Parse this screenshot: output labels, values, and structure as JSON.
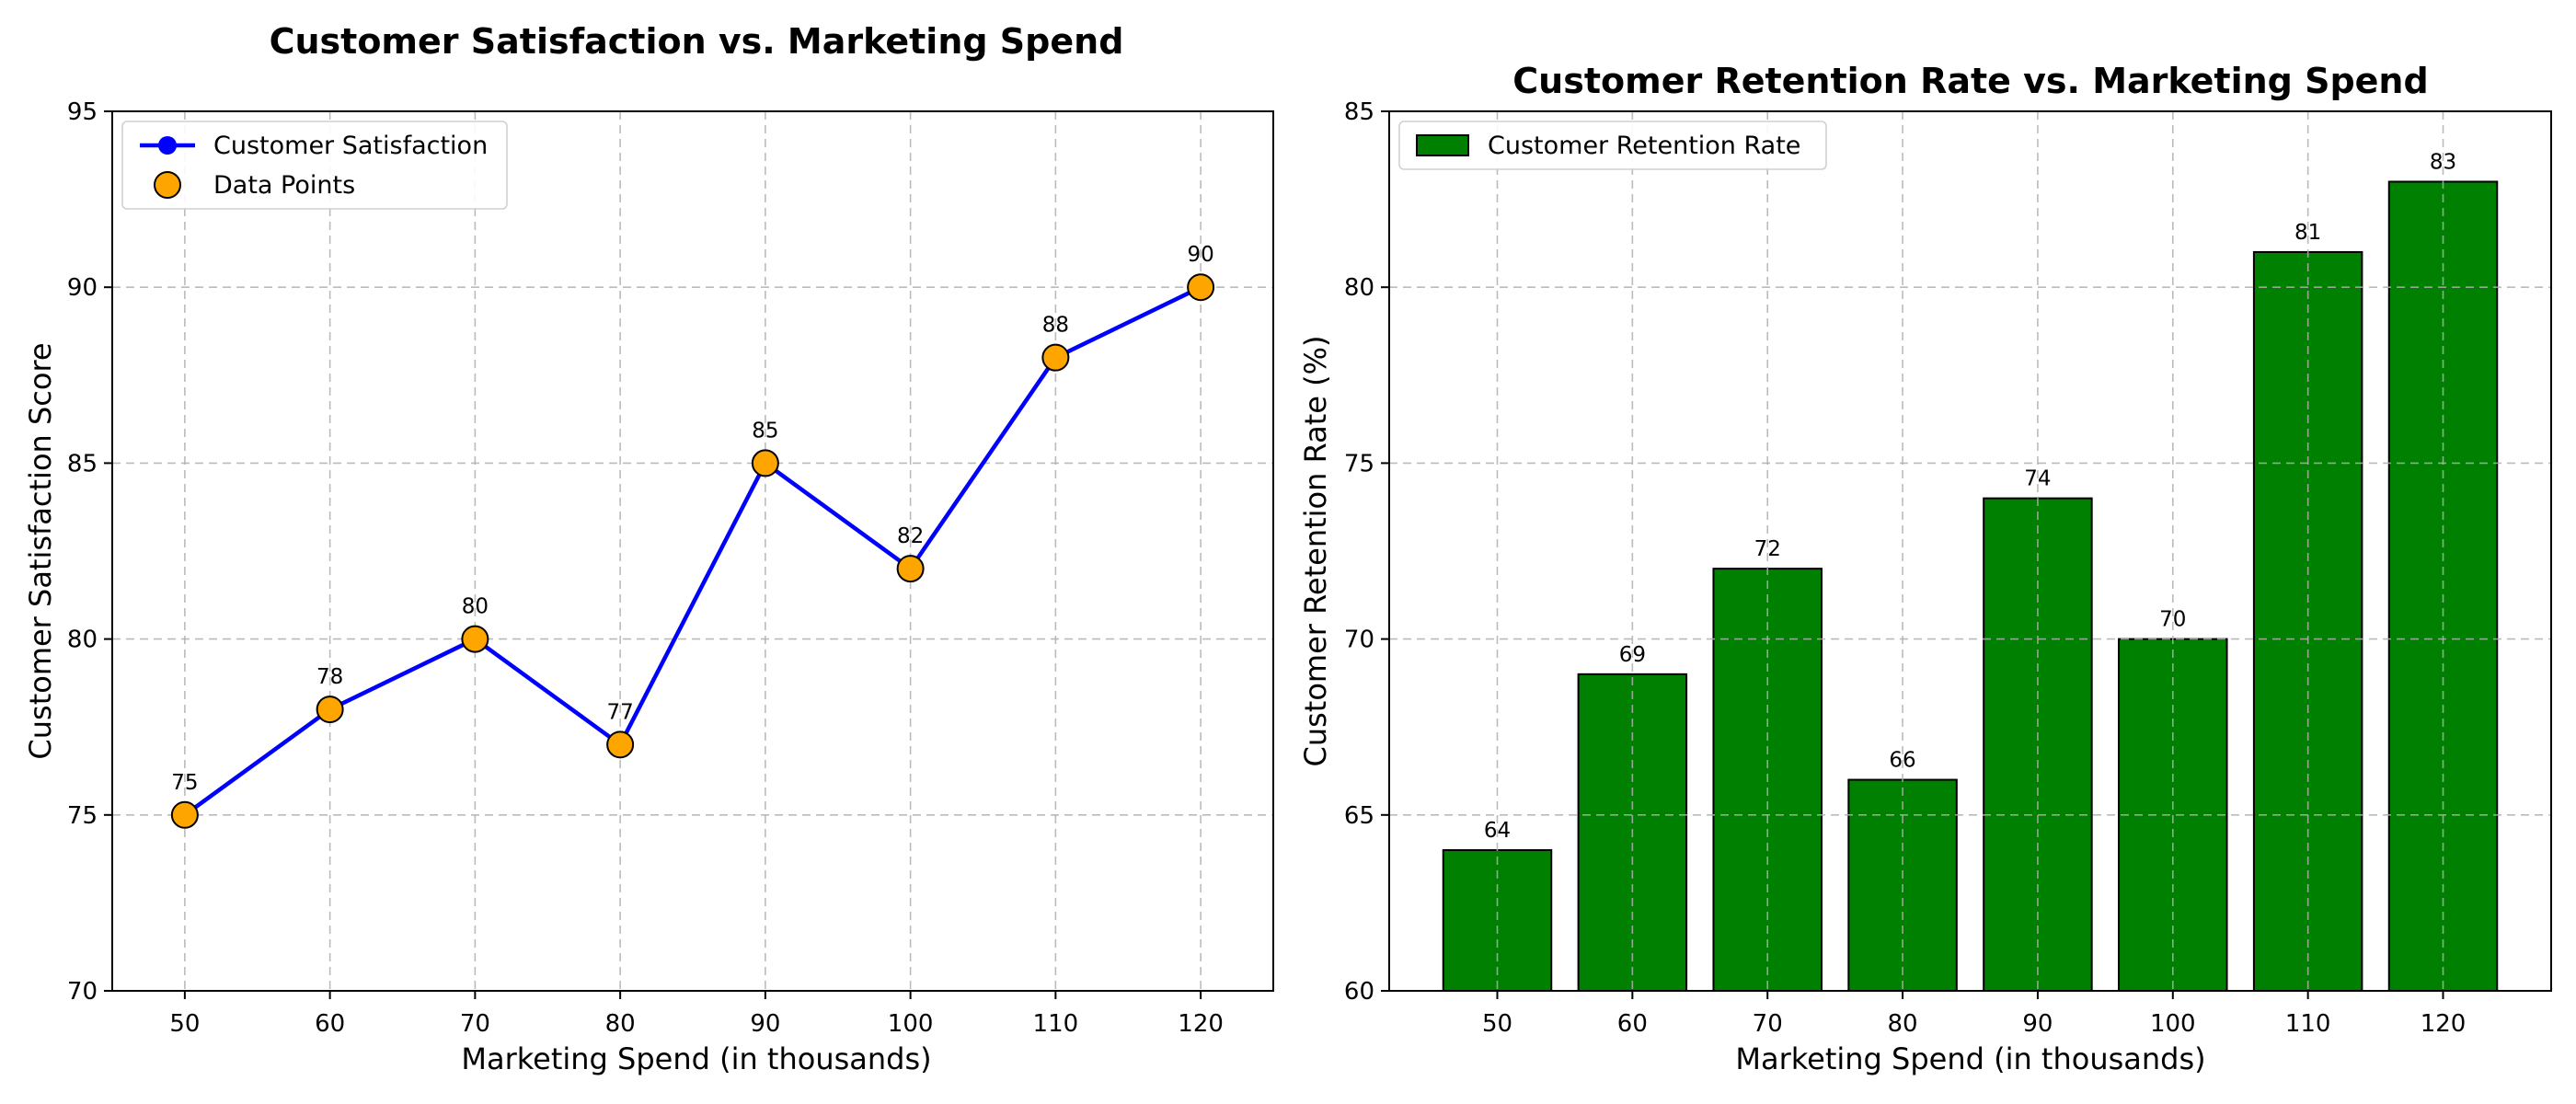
{
  "chart_data": [
    {
      "type": "line",
      "title": "Customer Satisfaction vs. Marketing Spend",
      "xlabel": "Marketing Spend (in thousands)",
      "ylabel": "Customer Satisfaction Score",
      "x": [
        50,
        60,
        70,
        80,
        90,
        100,
        110,
        120
      ],
      "xlim": [
        45,
        125
      ],
      "ylim": [
        70,
        95
      ],
      "xticks": [
        50,
        60,
        70,
        80,
        90,
        100,
        110,
        120
      ],
      "yticks": [
        70,
        75,
        80,
        85,
        90,
        95
      ],
      "grid": true,
      "legend_position": "top-left",
      "series": [
        {
          "name": "Customer Satisfaction",
          "values": [
            75,
            78,
            80,
            77,
            85,
            82,
            88,
            90
          ],
          "color": "#0000ff",
          "marker_color": "#0000ff"
        },
        {
          "name": "Data Points",
          "values": [
            75,
            78,
            80,
            77,
            85,
            82,
            88,
            90
          ],
          "color": "#ffa500",
          "edge_color": "#000000"
        }
      ],
      "data_labels": [
        "75",
        "78",
        "80",
        "77",
        "85",
        "82",
        "88",
        "90"
      ]
    },
    {
      "type": "bar",
      "title": "Customer Retention Rate vs. Marketing Spend",
      "xlabel": "Marketing Spend (in thousands)",
      "ylabel": "Customer Retention Rate (%)",
      "categories": [
        "50",
        "60",
        "70",
        "80",
        "90",
        "100",
        "110",
        "120"
      ],
      "ylim": [
        60,
        85
      ],
      "yticks": [
        60,
        65,
        70,
        75,
        80,
        85
      ],
      "grid": true,
      "legend_position": "top-left",
      "series": [
        {
          "name": "Customer Retention Rate",
          "values": [
            64,
            69,
            72,
            66,
            74,
            70,
            81,
            83
          ],
          "color": "#008000",
          "edge_color": "#000000"
        }
      ],
      "data_labels": [
        "64",
        "69",
        "72",
        "66",
        "74",
        "70",
        "81",
        "83"
      ]
    }
  ]
}
